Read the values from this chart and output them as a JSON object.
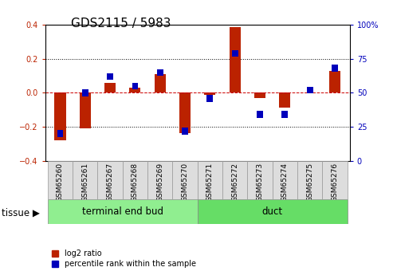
{
  "title": "GDS2115 / 5983",
  "samples": [
    "GSM65260",
    "GSM65261",
    "GSM65267",
    "GSM65268",
    "GSM65269",
    "GSM65270",
    "GSM65271",
    "GSM65272",
    "GSM65273",
    "GSM65274",
    "GSM65275",
    "GSM65276"
  ],
  "log2_ratio": [
    -0.28,
    -0.21,
    0.06,
    0.03,
    0.11,
    -0.235,
    -0.01,
    0.385,
    -0.03,
    -0.085,
    0.0,
    0.13
  ],
  "percentile_rank": [
    20,
    50,
    62,
    55,
    65,
    22,
    46,
    79,
    34,
    34,
    52,
    68
  ],
  "tissue_groups": [
    {
      "label": "terminal end bud",
      "start": 0,
      "end": 6,
      "color": "#90EE90"
    },
    {
      "label": "duct",
      "start": 6,
      "end": 12,
      "color": "#66DD66"
    }
  ],
  "log2_color": "#BB2200",
  "percentile_color": "#0000BB",
  "ylim_left": [
    -0.4,
    0.4
  ],
  "ylim_right": [
    0,
    100
  ],
  "yticks_left": [
    -0.4,
    -0.2,
    0.0,
    0.2,
    0.4
  ],
  "yticks_right": [
    0,
    25,
    50,
    75,
    100
  ],
  "hline_color": "#CC0000",
  "grid_color": "#000000",
  "ylabel_left_color": "#BB2200",
  "ylabel_right_color": "#0000BB",
  "tissue_label": "tissue",
  "legend_log2": "log2 ratio",
  "legend_pct": "percentile rank within the sample",
  "title_fontsize": 11,
  "tick_fontsize": 7,
  "label_fontsize": 8.5,
  "sample_fontsize": 6.5
}
